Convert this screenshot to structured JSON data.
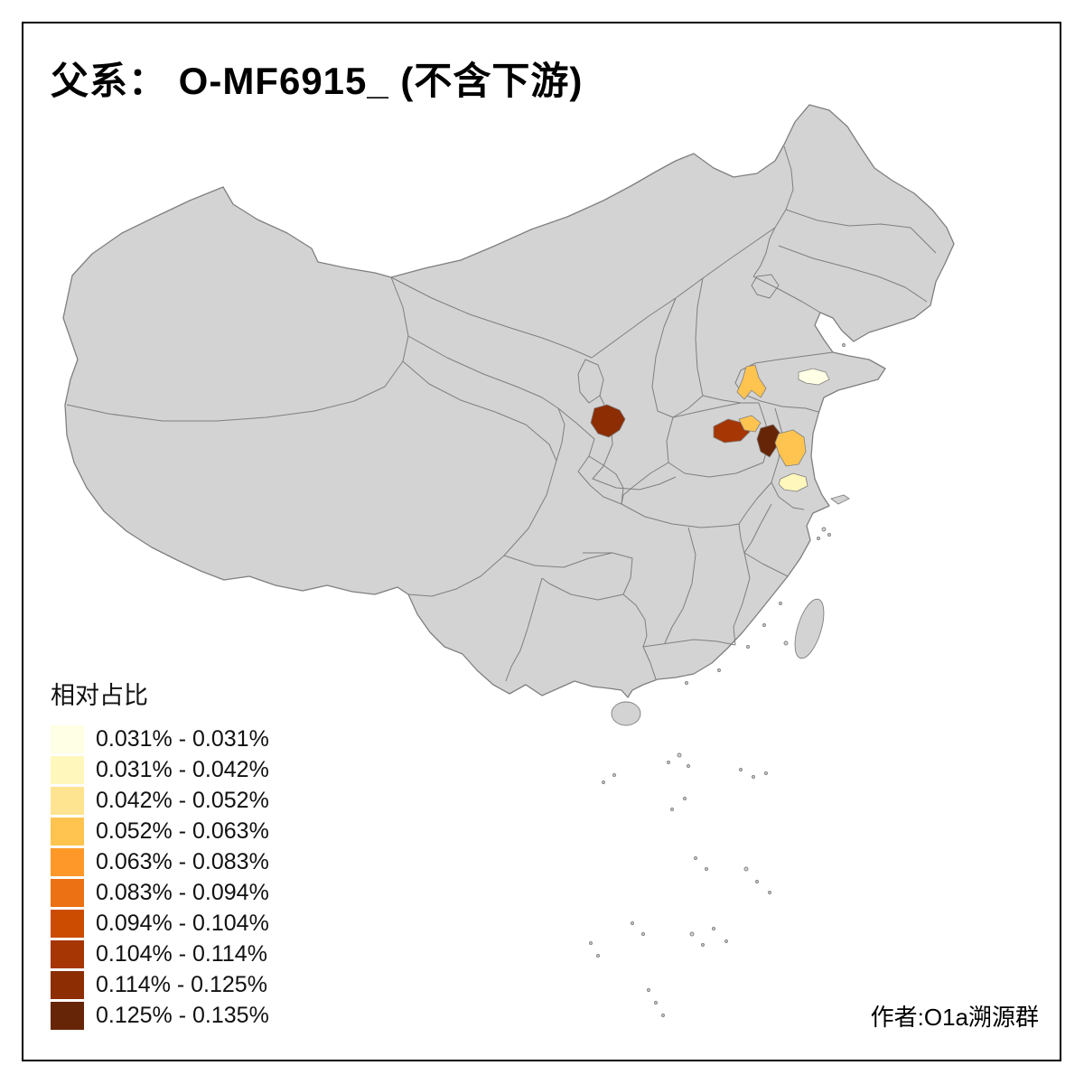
{
  "title": "父系：  O-MF6915_ (不含下游)",
  "author_credit": "作者:O1a溯源群",
  "legend": {
    "title": "相对占比",
    "items": [
      {
        "label": "0.031% - 0.031%",
        "color": "#FFFFE5"
      },
      {
        "label": "0.031% - 0.042%",
        "color": "#FFF7BC"
      },
      {
        "label": "0.042% - 0.052%",
        "color": "#FEE391"
      },
      {
        "label": "0.052% - 0.063%",
        "color": "#FEC44F"
      },
      {
        "label": "0.063% - 0.083%",
        "color": "#FE9929"
      },
      {
        "label": "0.083% - 0.094%",
        "color": "#EC7014"
      },
      {
        "label": "0.094% - 0.104%",
        "color": "#CC4C02"
      },
      {
        "label": "0.104% - 0.114%",
        "color": "#A63603"
      },
      {
        "label": "0.114% - 0.125%",
        "color": "#8C2D04"
      },
      {
        "label": "0.125% - 0.135%",
        "color": "#662506"
      }
    ]
  },
  "map": {
    "base_fill": "#D3D3D3",
    "border_color": "#7F7F7F",
    "frame_color": "#000000",
    "background": "#FFFFFF",
    "highlights": [
      {
        "color": "#8C2D04"
      },
      {
        "color": "#A63603"
      },
      {
        "color": "#FEC44F"
      },
      {
        "color": "#662506"
      },
      {
        "color": "#FEC44F"
      },
      {
        "color": "#FEC44F"
      },
      {
        "color": "#FFFFE5"
      },
      {
        "color": "#FFF7BC"
      }
    ]
  }
}
